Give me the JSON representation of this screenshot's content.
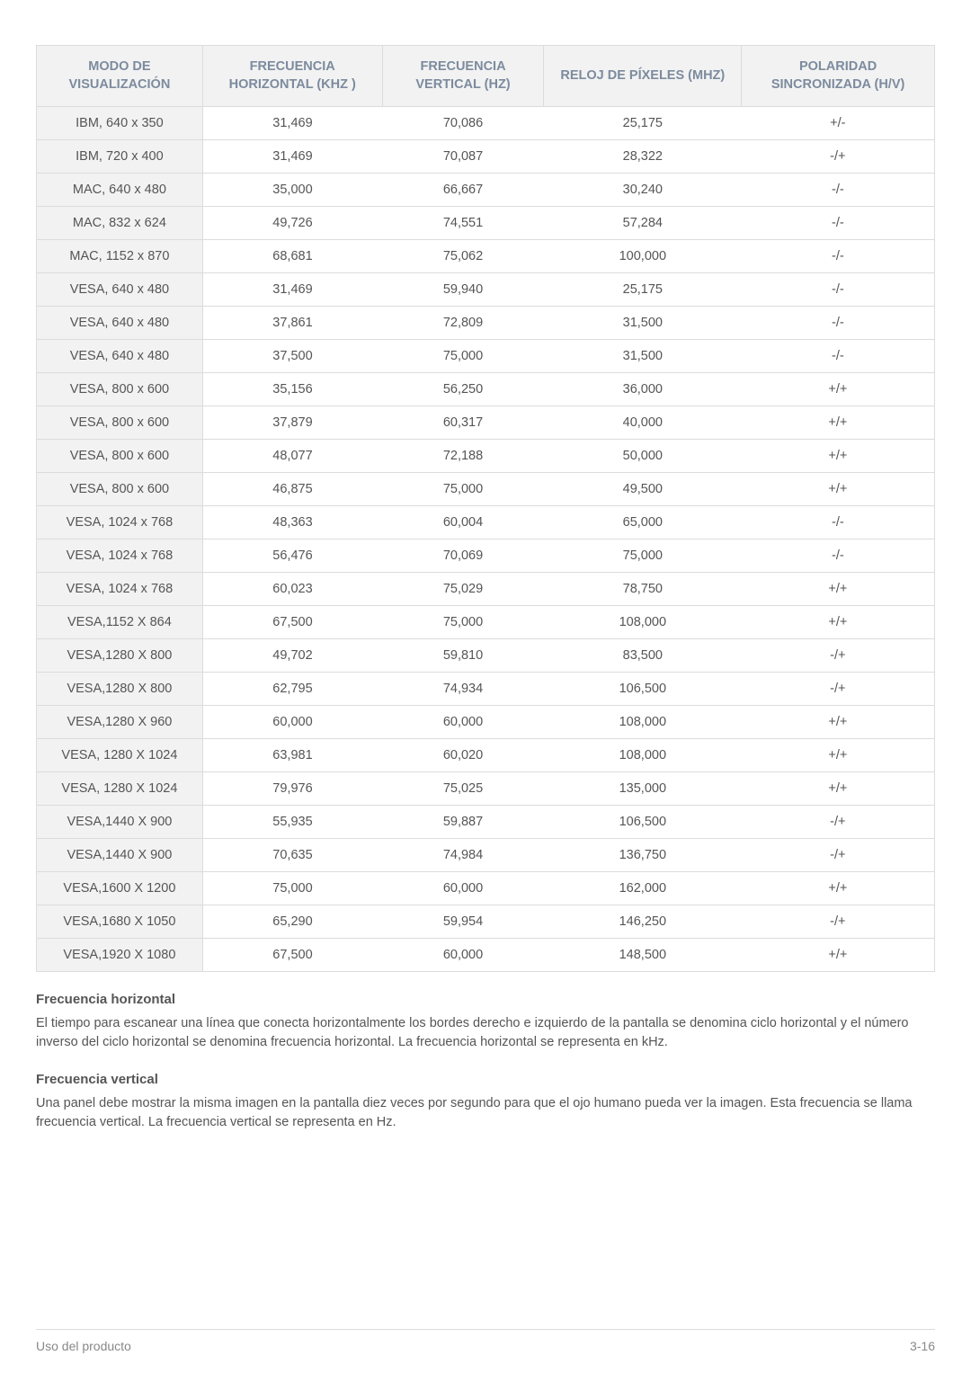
{
  "table": {
    "columns": [
      "MODO DE VISUALIZACIÓN",
      "FRECUENCIA HORIZONTAL (KHZ )",
      "FRECUENCIA VERTICAL (HZ)",
      "RELOJ DE PÍXELES (MHZ)",
      "POLARIDAD SINCRONIZADA (H/V)"
    ],
    "rows": [
      [
        "IBM, 640 x 350",
        "31,469",
        "70,086",
        "25,175",
        "+/-"
      ],
      [
        "IBM, 720 x 400",
        "31,469",
        "70,087",
        "28,322",
        "-/+"
      ],
      [
        "MAC, 640 x 480",
        "35,000",
        "66,667",
        "30,240",
        "-/-"
      ],
      [
        "MAC, 832 x 624",
        "49,726",
        "74,551",
        "57,284",
        "-/-"
      ],
      [
        "MAC, 1152 x 870",
        "68,681",
        "75,062",
        "100,000",
        "-/-"
      ],
      [
        "VESA, 640 x 480",
        "31,469",
        "59,940",
        "25,175",
        "-/-"
      ],
      [
        "VESA, 640 x 480",
        "37,861",
        "72,809",
        "31,500",
        "-/-"
      ],
      [
        "VESA, 640 x 480",
        "37,500",
        "75,000",
        "31,500",
        "-/-"
      ],
      [
        "VESA, 800 x 600",
        "35,156",
        "56,250",
        "36,000",
        "+/+"
      ],
      [
        "VESA, 800 x 600",
        "37,879",
        "60,317",
        "40,000",
        "+/+"
      ],
      [
        "VESA, 800 x 600",
        "48,077",
        "72,188",
        "50,000",
        "+/+"
      ],
      [
        "VESA, 800 x 600",
        "46,875",
        "75,000",
        "49,500",
        "+/+"
      ],
      [
        "VESA, 1024 x 768",
        "48,363",
        "60,004",
        "65,000",
        "-/-"
      ],
      [
        "VESA, 1024 x 768",
        "56,476",
        "70,069",
        "75,000",
        "-/-"
      ],
      [
        "VESA, 1024 x 768",
        "60,023",
        "75,029",
        "78,750",
        "+/+"
      ],
      [
        "VESA,1152 X 864",
        "67,500",
        "75,000",
        "108,000",
        "+/+"
      ],
      [
        "VESA,1280 X 800",
        "49,702",
        "59,810",
        "83,500",
        "-/+"
      ],
      [
        "VESA,1280 X 800",
        "62,795",
        "74,934",
        "106,500",
        "-/+"
      ],
      [
        "VESA,1280 X 960",
        "60,000",
        "60,000",
        "108,000",
        "+/+"
      ],
      [
        "VESA, 1280 X 1024",
        "63,981",
        "60,020",
        "108,000",
        "+/+"
      ],
      [
        "VESA, 1280 X 1024",
        "79,976",
        "75,025",
        "135,000",
        "+/+"
      ],
      [
        "VESA,1440 X 900",
        "55,935",
        "59,887",
        "106,500",
        "-/+"
      ],
      [
        "VESA,1440 X 900",
        "70,635",
        "74,984",
        "136,750",
        "-/+"
      ],
      [
        "VESA,1600 X 1200",
        "75,000",
        "60,000",
        "162,000",
        "+/+"
      ],
      [
        "VESA,1680 X 1050",
        "65,290",
        "59,954",
        "146,250",
        "-/+"
      ],
      [
        "VESA,1920 X 1080",
        "67,500",
        "60,000",
        "148,500",
        "+/+"
      ]
    ]
  },
  "sections": {
    "h1_title": "Frecuencia horizontal",
    "h1_text": "El tiempo para escanear una línea que conecta horizontalmente los bordes derecho e izquierdo de la pantalla se denomina ciclo horizontal y el número inverso del ciclo horizontal se denomina frecuencia horizontal. La frecuencia horizontal se representa en kHz.",
    "h2_title": "Frecuencia vertical",
    "h2_text": "Una panel debe mostrar la misma imagen en la pantalla diez veces por segundo para que el ojo humano pueda ver la imagen. Esta frecuencia se llama frecuencia vertical. La frecuencia vertical se representa en Hz."
  },
  "footer": {
    "left": "Uso del producto",
    "right": "3-16"
  }
}
